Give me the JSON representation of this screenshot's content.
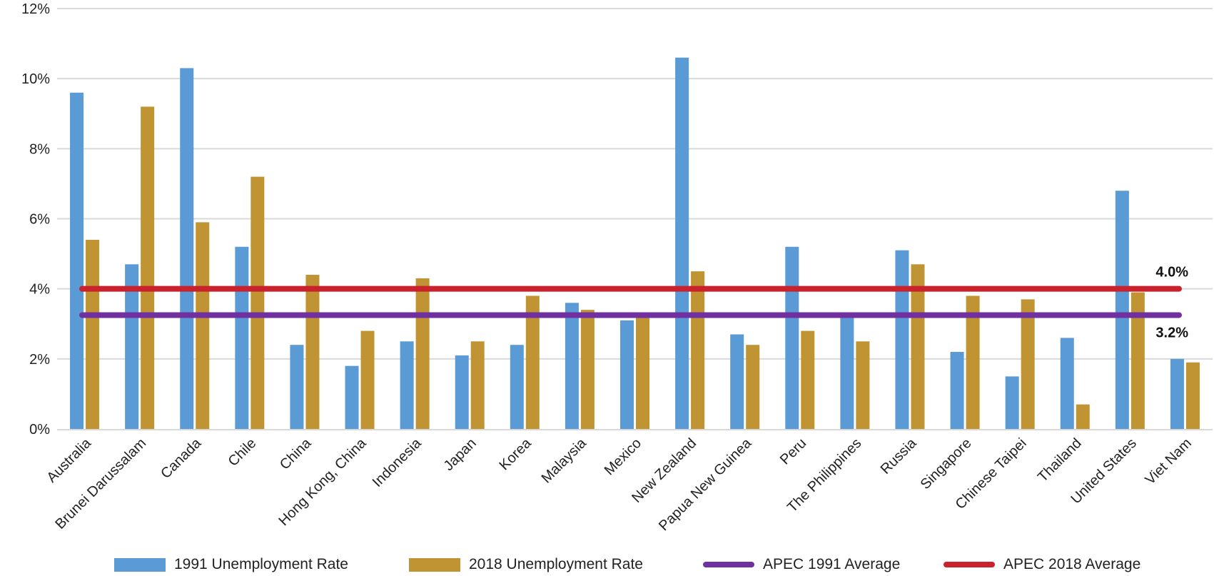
{
  "chart_data": {
    "type": "bar",
    "categories": [
      "Australia",
      "Brunei Darussalam",
      "Canada",
      "Chile",
      "China",
      "Hong Kong, China",
      "Indonesia",
      "Japan",
      "Korea",
      "Malaysia",
      "Mexico",
      "New Zealand",
      "Papua New Guinea",
      "Peru",
      "The Philippines",
      "Russia",
      "Singapore",
      "Chinese Taipei",
      "Thailand",
      "United States",
      "Viet Nam"
    ],
    "series": [
      {
        "name": "1991 Unemployment Rate",
        "color": "#5b9bd5",
        "values": [
          9.6,
          4.7,
          10.3,
          5.2,
          2.4,
          1.8,
          2.5,
          2.1,
          2.4,
          3.6,
          3.1,
          10.6,
          2.7,
          5.2,
          3.3,
          5.1,
          2.2,
          1.5,
          2.6,
          6.8,
          2.0
        ]
      },
      {
        "name": "2018 Unemployment Rate",
        "color": "#c09433",
        "values": [
          5.4,
          9.2,
          5.9,
          7.2,
          4.4,
          2.8,
          4.3,
          2.5,
          3.8,
          3.4,
          3.3,
          4.5,
          2.4,
          2.8,
          2.5,
          4.7,
          3.8,
          3.7,
          0.7,
          3.9,
          1.9
        ]
      }
    ],
    "reference_lines": [
      {
        "name": "APEC 1991 Average",
        "value": 3.25,
        "label": "3.2%",
        "color": "#7030a0"
      },
      {
        "name": "APEC 2018 Average",
        "value": 4.0,
        "label": "4.0%",
        "color": "#c9222c"
      }
    ],
    "y_ticks": [
      "0%",
      "2%",
      "4%",
      "6%",
      "8%",
      "10%",
      "12%"
    ],
    "ylim": [
      0,
      12
    ],
    "grid": true,
    "legend_position": "bottom"
  }
}
